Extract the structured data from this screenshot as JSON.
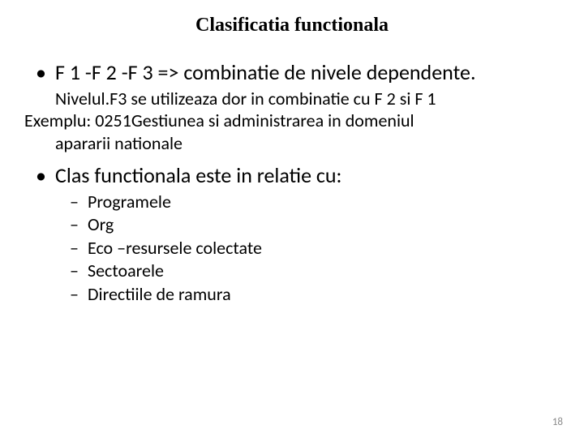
{
  "title": "Clasificatia functionala",
  "bullets": [
    {
      "text": "F 1 -F 2 -F 3 => combinatie  de nivele dependente."
    },
    {
      "text": "Clas functionala este  in relatie cu:"
    }
  ],
  "body1_indent": "Nivelul.F3 se utilizeaza dor in combinatie cu F 2 si F 1",
  "body2_line1": "Exemplu: 0251Gestiunea si administrarea in domeniul",
  "body2_line2": "apararii nationale",
  "sub_bullets": [
    "Programele",
    "Org",
    "Eco –resursele colectate",
    " Sectoarele",
    "Directiile de ramura"
  ],
  "page_number": "18"
}
